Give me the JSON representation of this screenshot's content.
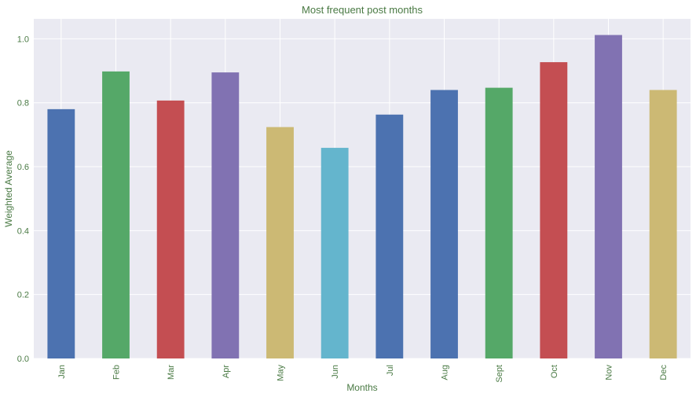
{
  "chart_data": {
    "type": "bar",
    "title": "Most frequent post months",
    "xlabel": "Months",
    "ylabel": "Weighted Average",
    "categories": [
      "Jan",
      "Feb",
      "Mar",
      "Apr",
      "May",
      "Jun",
      "Jul",
      "Aug",
      "Sept",
      "Oct",
      "Nov",
      "Dec"
    ],
    "values": [
      0.78,
      0.898,
      0.807,
      0.895,
      0.724,
      0.659,
      0.763,
      0.84,
      0.847,
      0.927,
      1.012,
      0.84
    ],
    "colors": [
      "#4c72b0",
      "#55a868",
      "#c44e52",
      "#8172b2",
      "#ccb974",
      "#64b5cd",
      "#4c72b0",
      "#4c72b0",
      "#55a868",
      "#c44e52",
      "#8172b2",
      "#ccb974"
    ],
    "ylim": [
      0,
      1.0625
    ],
    "yticks": [
      "0.0",
      "0.2",
      "0.4",
      "0.6",
      "0.8",
      "1.0"
    ],
    "ytick_values": [
      0,
      0.2,
      0.4,
      0.6,
      0.8,
      1.0
    ],
    "grid": true,
    "background": "#eaeaf2",
    "grid_color": "#ffffff",
    "text_color": "#4a7a44"
  }
}
